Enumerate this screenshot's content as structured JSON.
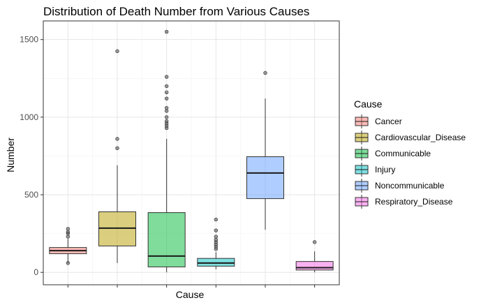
{
  "chart_data": {
    "type": "boxplot",
    "title": "Distribution of Death Number from Various Causes",
    "xlabel": "Cause",
    "ylabel": "Number",
    "ylim": [
      -80,
      1620
    ],
    "yticks": [
      0,
      500,
      1000,
      1500
    ],
    "grid": true,
    "legend": {
      "title": "Cause",
      "position": "right"
    },
    "series": [
      {
        "name": "Cancer",
        "color": "#F8766D",
        "whisker_low": 60,
        "q1": 120,
        "median": 140,
        "q3": 160,
        "whisker_high": 215,
        "outliers": [
          230,
          250,
          260,
          280,
          60
        ]
      },
      {
        "name": "Cardiovascular_Disease",
        "color": "#B79F00",
        "whisker_low": 60,
        "q1": 170,
        "median": 285,
        "q3": 390,
        "whisker_high": 690,
        "outliers": [
          800,
          860,
          1425
        ]
      },
      {
        "name": "Communicable",
        "color": "#00BA38",
        "whisker_low": 0,
        "q1": 35,
        "median": 105,
        "q3": 385,
        "whisker_high": 860,
        "outliers": [
          930,
          945,
          960,
          975,
          1000,
          1040,
          1060,
          1120,
          1160,
          1200,
          1260,
          1550
        ]
      },
      {
        "name": "Injury",
        "color": "#00BFC4",
        "whisker_low": 20,
        "q1": 40,
        "median": 60,
        "q3": 90,
        "whisker_high": 130,
        "outliers": [
          150,
          165,
          180,
          195,
          210,
          230,
          270,
          340
        ]
      },
      {
        "name": "Noncommunicable",
        "color": "#619CFF",
        "whisker_low": 275,
        "q1": 475,
        "median": 640,
        "q3": 745,
        "whisker_high": 1120,
        "outliers": [
          1285
        ]
      },
      {
        "name": "Respiratory_Disease",
        "color": "#F564E3",
        "whisker_low": 0,
        "q1": 15,
        "median": 30,
        "q3": 70,
        "whisker_high": 135,
        "outliers": [
          195
        ]
      }
    ]
  }
}
